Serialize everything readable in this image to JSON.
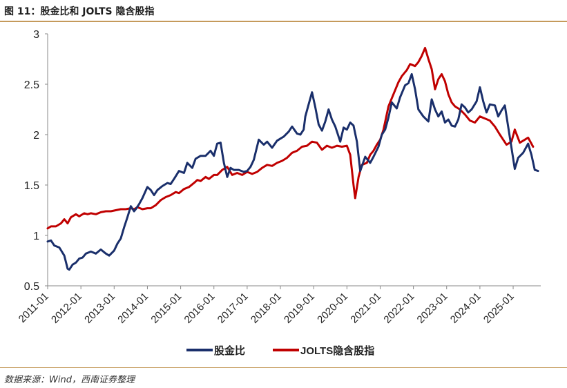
{
  "figure": {
    "title": "图 11：股金比和 JOLTS 隐含股指",
    "source": "数据来源：Wind，西南证券整理"
  },
  "colors": {
    "series1": "#1a2f6b",
    "series2": "#c00000",
    "rule": "#c59a5b"
  },
  "chart_data": {
    "type": "line",
    "title": "图 11：股金比和 JOLTS 隐含股指",
    "xlabel": "",
    "ylabel": "",
    "ylim": [
      0.5,
      3
    ],
    "yticks": [
      "0.5",
      "1",
      "1.5",
      "2",
      "2.5",
      "3"
    ],
    "ytick_values": [
      0.5,
      1,
      1.5,
      2,
      2.5,
      3
    ],
    "xlim": [
      2011.0,
      2025.83
    ],
    "xticks": [
      "2011-01",
      "2012-01",
      "2013-01",
      "2014-01",
      "2015-01",
      "2016-01",
      "2017-01",
      "2018-01",
      "2019-01",
      "2020-01",
      "2021-01",
      "2022-01",
      "2023-01",
      "2024-01",
      "2025-01"
    ],
    "xtick_values": [
      2011,
      2012,
      2013,
      2014,
      2015,
      2016,
      2017,
      2018,
      2019,
      2020,
      2021,
      2022,
      2023,
      2024,
      2025
    ],
    "grid": false,
    "legend_position": "bottom",
    "series": [
      {
        "name": "股金比",
        "x": [
          2011.0,
          2011.1,
          2011.2,
          2011.35,
          2011.5,
          2011.6,
          2011.65,
          2011.75,
          2011.85,
          2011.95,
          2012.05,
          2012.15,
          2012.3,
          2012.45,
          2012.6,
          2012.75,
          2012.85,
          2013.0,
          2013.1,
          2013.2,
          2013.3,
          2013.4,
          2013.5,
          2013.6,
          2013.65,
          2013.75,
          2013.85,
          2014.0,
          2014.1,
          2014.2,
          2014.3,
          2014.45,
          2014.6,
          2014.7,
          2014.8,
          2014.95,
          2015.1,
          2015.2,
          2015.35,
          2015.45,
          2015.6,
          2015.75,
          2015.9,
          2016.0,
          2016.1,
          2016.2,
          2016.3,
          2016.4,
          2016.5,
          2016.6,
          2016.75,
          2016.9,
          2017.0,
          2017.1,
          2017.2,
          2017.35,
          2017.5,
          2017.6,
          2017.75,
          2017.9,
          2018.0,
          2018.1,
          2018.25,
          2018.35,
          2018.5,
          2018.6,
          2018.7,
          2018.75,
          2018.85,
          2018.95,
          2019.05,
          2019.15,
          2019.25,
          2019.35,
          2019.45,
          2019.55,
          2019.65,
          2019.8,
          2019.9,
          2020.0,
          2020.1,
          2020.2,
          2020.3,
          2020.4,
          2020.55,
          2020.7,
          2020.8,
          2020.95,
          2021.05,
          2021.15,
          2021.25,
          2021.35,
          2021.5,
          2021.6,
          2021.75,
          2021.85,
          2021.95,
          2022.05,
          2022.15,
          2022.3,
          2022.45,
          2022.55,
          2022.65,
          2022.75,
          2022.85,
          2022.95,
          2023.05,
          2023.15,
          2023.25,
          2023.35,
          2023.45,
          2023.55,
          2023.65,
          2023.75,
          2023.9,
          2024.0,
          2024.1,
          2024.2,
          2024.3,
          2024.45,
          2024.55,
          2024.65,
          2024.75,
          2024.85,
          2024.95,
          2025.05,
          2025.15,
          2025.3,
          2025.45,
          2025.55,
          2025.65,
          2025.75
        ],
        "values": [
          0.94,
          0.95,
          0.9,
          0.88,
          0.8,
          0.67,
          0.66,
          0.71,
          0.73,
          0.77,
          0.78,
          0.82,
          0.84,
          0.82,
          0.86,
          0.82,
          0.8,
          0.85,
          0.92,
          0.97,
          1.08,
          1.18,
          1.29,
          1.24,
          1.26,
          1.31,
          1.37,
          1.48,
          1.45,
          1.4,
          1.45,
          1.49,
          1.52,
          1.51,
          1.56,
          1.64,
          1.62,
          1.72,
          1.67,
          1.76,
          1.79,
          1.79,
          1.84,
          1.79,
          1.91,
          1.92,
          1.72,
          1.58,
          1.67,
          1.65,
          1.65,
          1.63,
          1.64,
          1.68,
          1.75,
          1.95,
          1.9,
          1.93,
          1.87,
          1.94,
          1.96,
          1.98,
          2.03,
          2.08,
          2.01,
          2.0,
          2.05,
          2.18,
          2.3,
          2.42,
          2.27,
          2.1,
          2.04,
          2.13,
          2.25,
          2.15,
          2.08,
          1.93,
          2.07,
          2.05,
          2.12,
          2.09,
          1.93,
          1.64,
          1.78,
          1.72,
          1.78,
          1.88,
          2.0,
          2.05,
          2.17,
          2.32,
          2.26,
          2.37,
          2.49,
          2.51,
          2.6,
          2.45,
          2.25,
          2.18,
          2.13,
          2.35,
          2.25,
          2.18,
          2.23,
          2.12,
          2.15,
          2.09,
          2.08,
          2.15,
          2.3,
          2.27,
          2.22,
          2.25,
          2.33,
          2.47,
          2.33,
          2.22,
          2.3,
          2.29,
          2.18,
          2.24,
          2.29,
          2.08,
          1.87,
          1.66,
          1.77,
          1.82,
          1.91,
          1.8,
          1.65,
          1.64
        ]
      },
      {
        "name": "JOLTS隐含股指",
        "x": [
          2011.0,
          2011.1,
          2011.25,
          2011.4,
          2011.5,
          2011.6,
          2011.7,
          2011.85,
          2011.95,
          2012.1,
          2012.2,
          2012.3,
          2012.45,
          2012.6,
          2012.75,
          2012.9,
          2013.05,
          2013.2,
          2013.35,
          2013.5,
          2013.6,
          2013.7,
          2013.85,
          2014.0,
          2014.1,
          2014.25,
          2014.4,
          2014.55,
          2014.7,
          2014.85,
          2014.95,
          2015.1,
          2015.25,
          2015.4,
          2015.5,
          2015.6,
          2015.75,
          2015.85,
          2016.0,
          2016.1,
          2016.25,
          2016.4,
          2016.55,
          2016.7,
          2016.85,
          2017.0,
          2017.15,
          2017.3,
          2017.45,
          2017.6,
          2017.75,
          2017.9,
          2018.05,
          2018.2,
          2018.35,
          2018.5,
          2018.65,
          2018.8,
          2018.95,
          2019.1,
          2019.25,
          2019.4,
          2019.55,
          2019.7,
          2019.85,
          2020.0,
          2020.1,
          2020.2,
          2020.25,
          2020.35,
          2020.45,
          2020.6,
          2020.7,
          2020.8,
          2020.9,
          2021.0,
          2021.1,
          2021.25,
          2021.4,
          2021.55,
          2021.65,
          2021.8,
          2021.9,
          2022.05,
          2022.15,
          2022.25,
          2022.35,
          2022.45,
          2022.55,
          2022.65,
          2022.75,
          2022.85,
          2022.95,
          2023.05,
          2023.15,
          2023.25,
          2023.4,
          2023.55,
          2023.7,
          2023.85,
          2024.0,
          2024.15,
          2024.3,
          2024.45,
          2024.6,
          2024.7,
          2024.8,
          2024.95,
          2025.05,
          2025.2,
          2025.3,
          2025.45,
          2025.6
        ],
        "values": [
          1.07,
          1.09,
          1.09,
          1.12,
          1.16,
          1.12,
          1.18,
          1.21,
          1.19,
          1.22,
          1.21,
          1.22,
          1.21,
          1.23,
          1.24,
          1.24,
          1.25,
          1.26,
          1.26,
          1.27,
          1.26,
          1.28,
          1.26,
          1.27,
          1.27,
          1.3,
          1.35,
          1.38,
          1.4,
          1.43,
          1.42,
          1.46,
          1.48,
          1.52,
          1.55,
          1.54,
          1.58,
          1.56,
          1.6,
          1.6,
          1.65,
          1.68,
          1.6,
          1.62,
          1.6,
          1.63,
          1.61,
          1.63,
          1.67,
          1.7,
          1.69,
          1.72,
          1.74,
          1.77,
          1.82,
          1.84,
          1.88,
          1.89,
          1.93,
          1.92,
          1.85,
          1.89,
          1.87,
          1.89,
          1.88,
          1.89,
          1.8,
          1.5,
          1.37,
          1.58,
          1.7,
          1.72,
          1.8,
          1.84,
          1.9,
          1.95,
          2.05,
          2.28,
          2.4,
          2.52,
          2.58,
          2.64,
          2.7,
          2.68,
          2.72,
          2.78,
          2.86,
          2.75,
          2.65,
          2.45,
          2.55,
          2.6,
          2.53,
          2.4,
          2.32,
          2.28,
          2.25,
          2.2,
          2.14,
          2.12,
          2.18,
          2.16,
          2.14,
          2.08,
          2.0,
          1.95,
          1.9,
          1.93,
          2.05,
          1.92,
          1.94,
          1.97,
          1.88
        ]
      }
    ]
  }
}
